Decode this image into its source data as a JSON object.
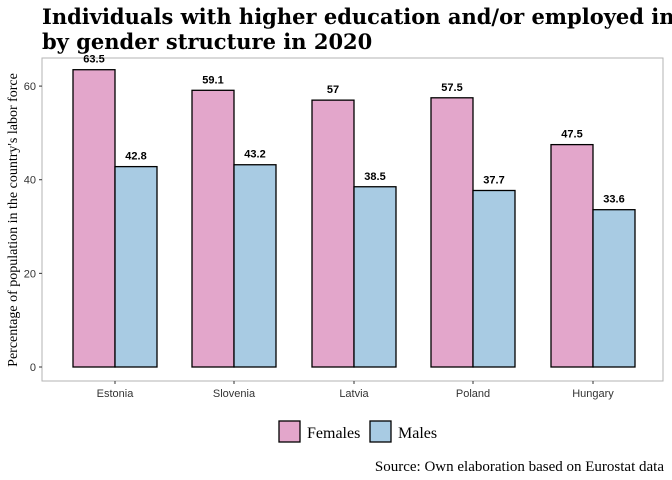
{
  "chart_data": {
    "type": "bar",
    "title": "Individuals with higher education and/or employed in science and technology",
    "title_line2": "by gender structure in 2020",
    "xlabel": "",
    "ylabel": "Percentage of population in the country's labor force",
    "categories": [
      "Estonia",
      "Slovenia",
      "Latvia",
      "Poland",
      "Hungary"
    ],
    "series": [
      {
        "name": "Females",
        "color": "#e3a6cb",
        "values": [
          63.5,
          59.1,
          57,
          57.5,
          47.5
        ],
        "labels": [
          "63.5",
          "59.1",
          "57",
          "57.5",
          "47.5"
        ]
      },
      {
        "name": "Males",
        "color": "#a8cbe3",
        "values": [
          42.8,
          43.2,
          38.5,
          37.7,
          33.6
        ],
        "labels": [
          "42.8",
          "43.2",
          "38.5",
          "37.7",
          "33.6"
        ]
      }
    ],
    "ylim": [
      0,
      66
    ],
    "yticks": [
      0,
      20,
      40,
      60
    ],
    "ytick_labels": [
      "0",
      "20",
      "40",
      "60"
    ],
    "grid": false,
    "legend_position": "bottom",
    "caption": "Source: Own elaboration based on Eurostat data"
  }
}
